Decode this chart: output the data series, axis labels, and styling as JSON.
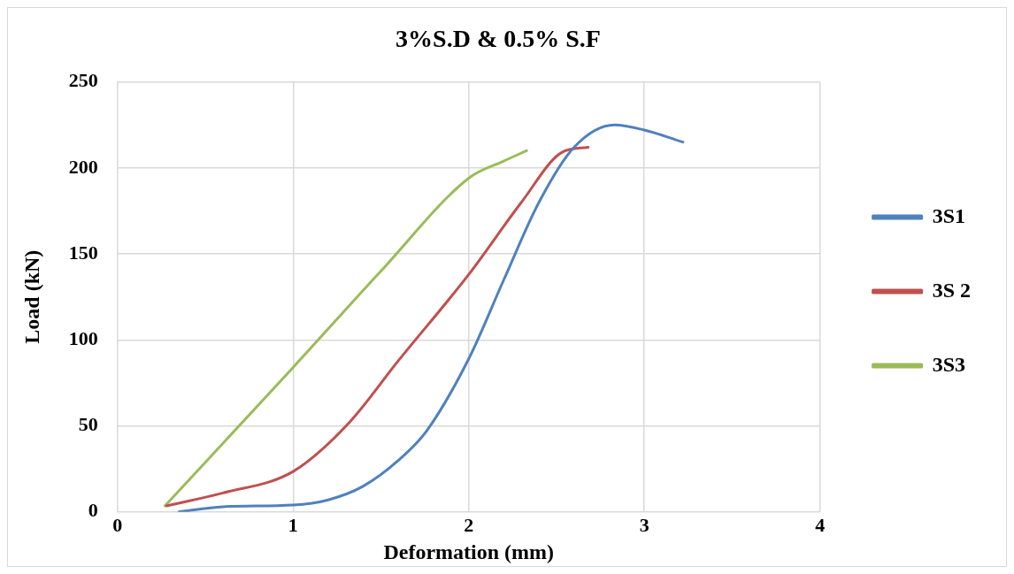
{
  "chart_data": {
    "type": "line",
    "title": "3%S.D & 0.5% S.F",
    "xlabel": "Deformation (mm)",
    "ylabel": "Load (kN)",
    "xlim": [
      0,
      4
    ],
    "xticks": [
      0,
      1,
      2,
      3,
      4
    ],
    "ylim": [
      0,
      250
    ],
    "yticks": [
      0,
      50,
      100,
      150,
      200,
      250
    ],
    "grid": true,
    "legend": "right",
    "marker": "none",
    "line_style": "solid",
    "series": [
      {
        "name": "3S1",
        "color": "#4f81bd",
        "x": [
          0.35,
          0.6,
          1.0,
          1.2,
          1.4,
          1.6,
          1.76,
          2.0,
          2.2,
          2.4,
          2.6,
          2.83,
          3.0,
          3.22
        ],
        "values": [
          0,
          3,
          4,
          7,
          15,
          30,
          47,
          89,
          135,
          180,
          212,
          225,
          222,
          215
        ]
      },
      {
        "name": "3S 2",
        "color": "#c0504d",
        "x": [
          0.28,
          0.6,
          1.0,
          1.32,
          1.6,
          2.0,
          2.3,
          2.53,
          2.68
        ],
        "values": [
          3.5,
          11,
          23.5,
          52,
          88,
          138,
          180,
          209,
          212
        ]
      },
      {
        "name": "3S3",
        "color": "#9bbb59",
        "x": [
          0.27,
          1.0,
          1.5,
          2.0,
          2.2,
          2.33
        ],
        "values": [
          3.5,
          84,
          140,
          194,
          204,
          210
        ]
      }
    ]
  }
}
